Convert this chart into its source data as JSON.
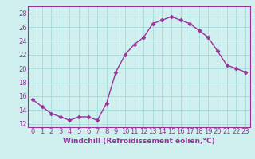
{
  "x": [
    0,
    1,
    2,
    3,
    4,
    5,
    6,
    7,
    8,
    9,
    10,
    11,
    12,
    13,
    14,
    15,
    16,
    17,
    18,
    19,
    20,
    21,
    22,
    23
  ],
  "y": [
    15.5,
    14.5,
    13.5,
    13.0,
    12.5,
    13.0,
    13.0,
    12.5,
    15.0,
    19.5,
    22.0,
    23.5,
    24.5,
    26.5,
    27.0,
    27.5,
    27.0,
    26.5,
    25.5,
    24.5,
    22.5,
    20.5,
    20.0,
    19.5
  ],
  "line_color": "#993399",
  "marker": "D",
  "marker_size": 2.5,
  "bg_color": "#d0f0f0",
  "grid_color": "#aadddd",
  "xlabel": "Windchill (Refroidissement éolien,°C)",
  "xlabel_fontsize": 6.5,
  "tick_fontsize": 6.0,
  "ylabel_ticks": [
    12,
    14,
    16,
    18,
    20,
    22,
    24,
    26,
    28
  ],
  "xlim": [
    -0.5,
    23.5
  ],
  "ylim": [
    11.5,
    29.0
  ]
}
